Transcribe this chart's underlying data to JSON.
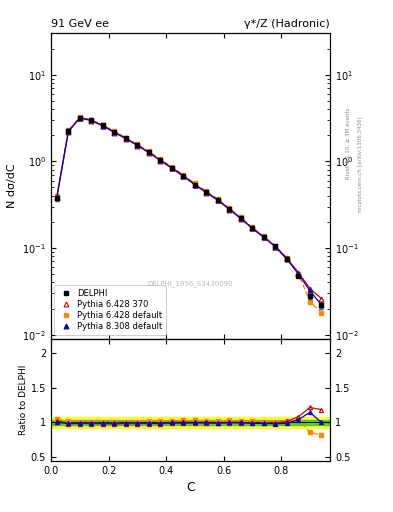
{
  "title_left": "91 GeV ee",
  "title_right": "γ*/Z (Hadronic)",
  "xlabel": "C",
  "ylabel_main": "N dσ/dC",
  "ylabel_ratio": "Ratio to DELPHI",
  "watermark": "DELPHI_1996_S3430090",
  "rivet_label": "Rivet 3.1.10, ≥ 3M events",
  "mcplots_label": "mcplots.cern.ch [arXiv:1306.3436]",
  "C_centers": [
    0.02,
    0.06,
    0.1,
    0.14,
    0.18,
    0.22,
    0.26,
    0.3,
    0.34,
    0.38,
    0.42,
    0.46,
    0.5,
    0.54,
    0.58,
    0.62,
    0.66,
    0.7,
    0.74,
    0.78,
    0.82,
    0.86,
    0.9,
    0.94
  ],
  "DELPHI_y": [
    0.38,
    2.25,
    3.2,
    3.0,
    2.6,
    2.2,
    1.85,
    1.55,
    1.28,
    1.04,
    0.84,
    0.68,
    0.54,
    0.44,
    0.36,
    0.28,
    0.22,
    0.17,
    0.135,
    0.105,
    0.075,
    0.048,
    0.028,
    0.022
  ],
  "DELPHI_err": [
    0.03,
    0.08,
    0.1,
    0.08,
    0.07,
    0.06,
    0.05,
    0.04,
    0.035,
    0.03,
    0.025,
    0.02,
    0.016,
    0.013,
    0.011,
    0.009,
    0.007,
    0.006,
    0.005,
    0.004,
    0.003,
    0.002,
    0.002,
    0.002
  ],
  "P6_370_y": [
    0.39,
    2.2,
    3.15,
    2.95,
    2.55,
    2.15,
    1.82,
    1.52,
    1.26,
    1.02,
    0.83,
    0.67,
    0.535,
    0.435,
    0.355,
    0.278,
    0.218,
    0.168,
    0.133,
    0.104,
    0.076,
    0.052,
    0.034,
    0.026
  ],
  "P6_def_y": [
    0.4,
    2.28,
    3.22,
    3.02,
    2.62,
    2.22,
    1.87,
    1.57,
    1.3,
    1.06,
    0.86,
    0.7,
    0.555,
    0.452,
    0.368,
    0.288,
    0.225,
    0.173,
    0.136,
    0.106,
    0.077,
    0.05,
    0.024,
    0.018
  ],
  "P8_def_y": [
    0.38,
    2.22,
    3.18,
    2.98,
    2.58,
    2.18,
    1.84,
    1.54,
    1.27,
    1.03,
    0.84,
    0.68,
    0.54,
    0.44,
    0.358,
    0.28,
    0.22,
    0.168,
    0.133,
    0.103,
    0.074,
    0.05,
    0.032,
    0.022
  ],
  "DELPHI_color": "#000000",
  "P6_370_color": "#cc0000",
  "P6_def_color": "#ff8800",
  "P8_def_color": "#0000cc",
  "band_yellow": [
    0.92,
    1.08
  ],
  "band_green": [
    0.96,
    1.04
  ],
  "ylim_main": [
    0.009,
    30
  ],
  "ylim_ratio": [
    0.45,
    2.2
  ],
  "xlim": [
    0.0,
    0.97
  ]
}
